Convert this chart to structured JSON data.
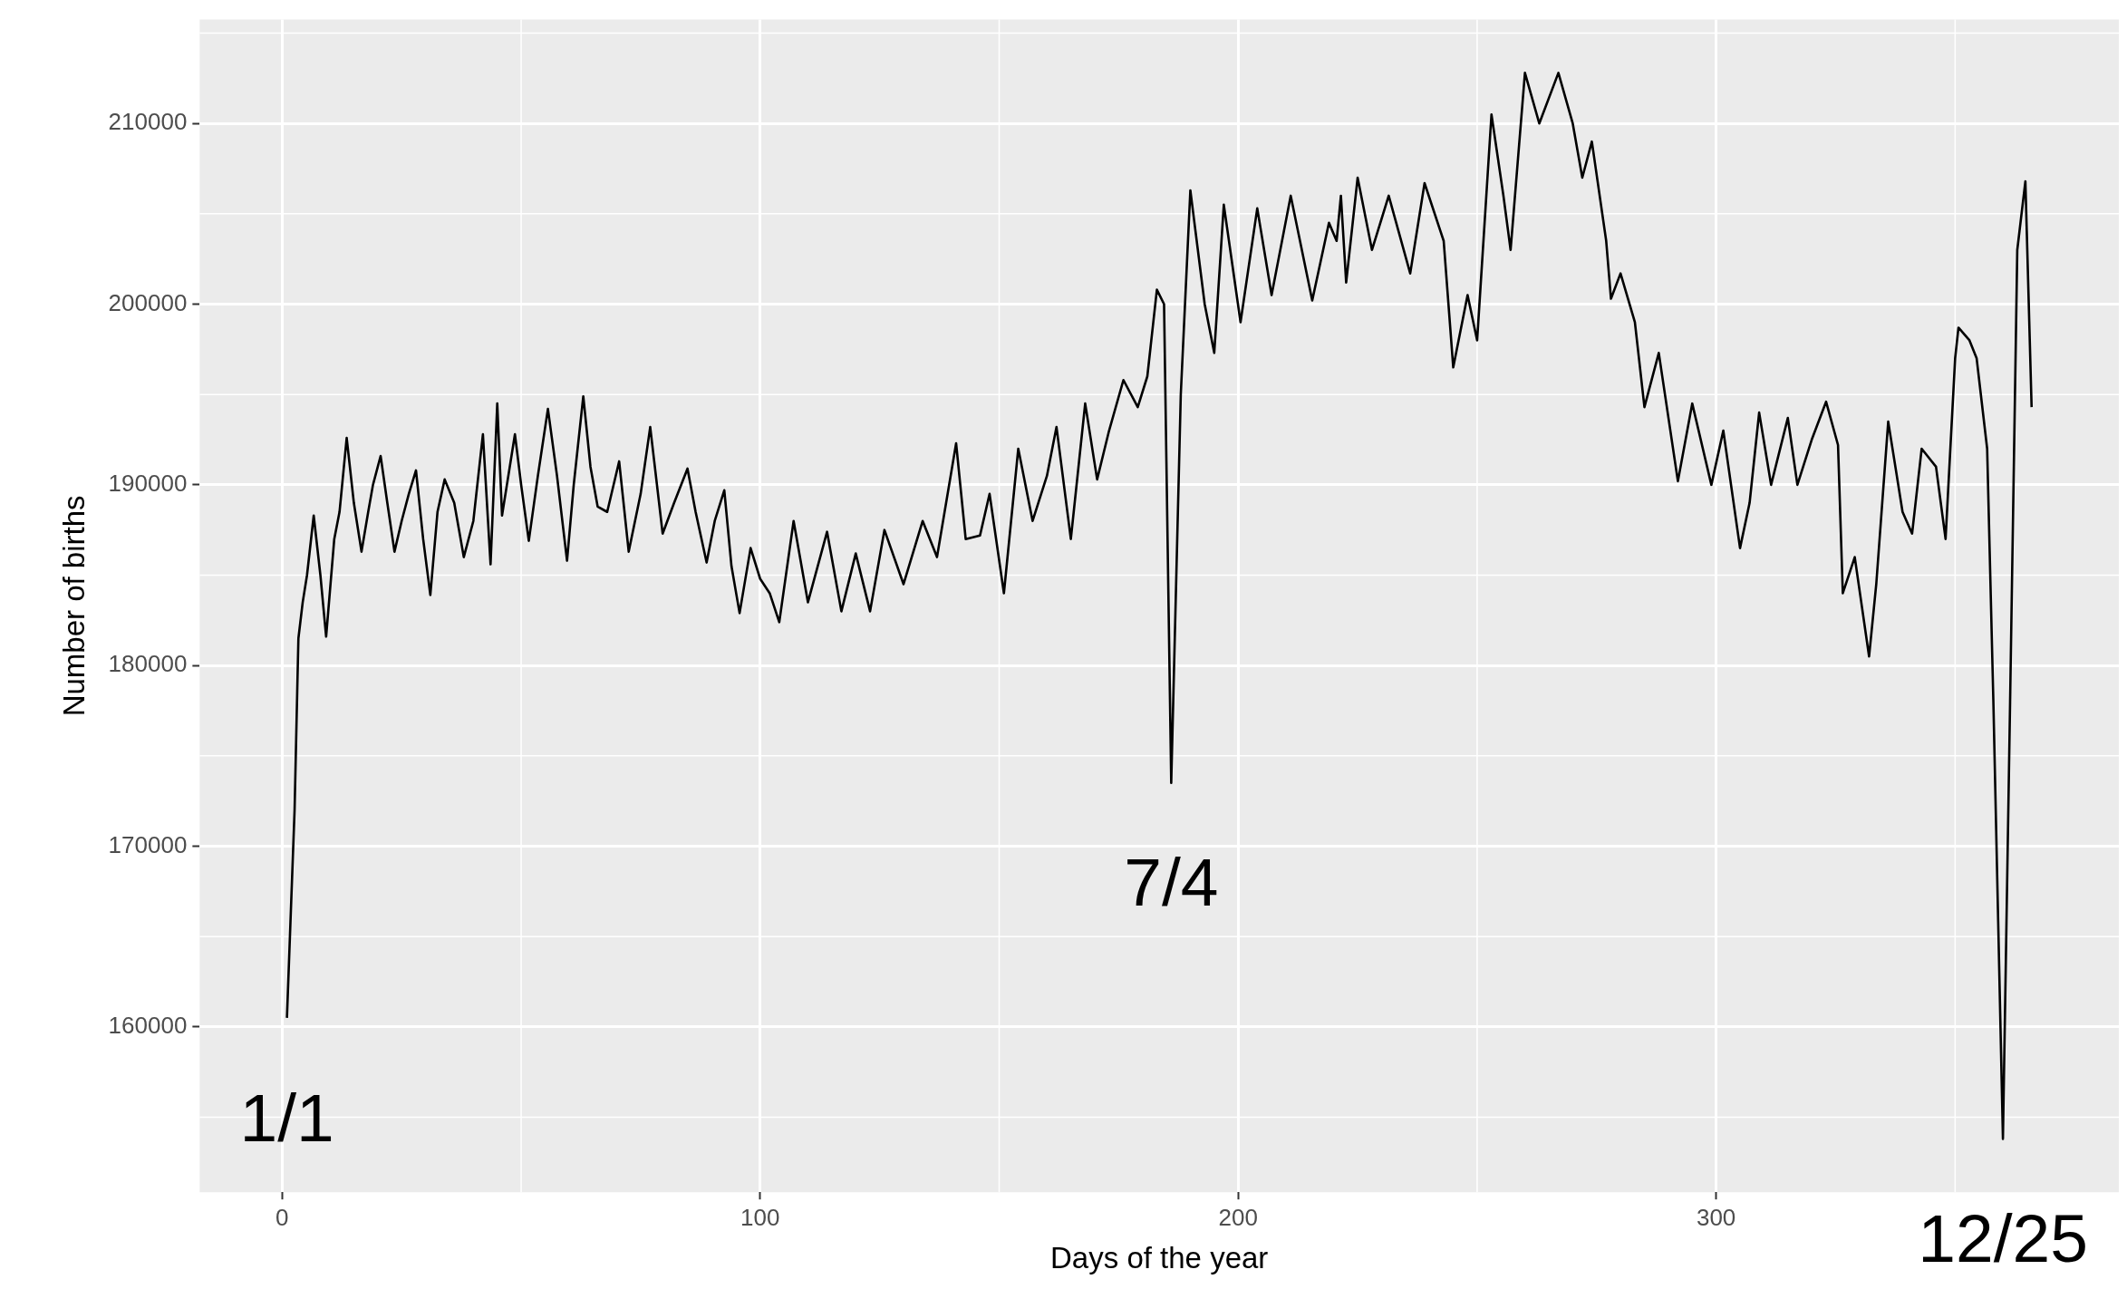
{
  "chart_data": {
    "type": "line",
    "xlabel": "Days of the year",
    "ylabel": "Number of births",
    "x": [
      1,
      2.6,
      3.4,
      4.3,
      5.2,
      6.6,
      8,
      9.2,
      10.9,
      12,
      13.5,
      15,
      16.6,
      18,
      19,
      20.6,
      22,
      23.5,
      25,
      26.5,
      28,
      29.5,
      31,
      32.5,
      34,
      36,
      38,
      40,
      42,
      43.6,
      45,
      46,
      48.7,
      50,
      51.6,
      53.5,
      55.6,
      57.5,
      59.6,
      61,
      63,
      64.5,
      66,
      68,
      70.5,
      72.5,
      75,
      77,
      79.6,
      82,
      84.8,
      86.5,
      88.8,
      90.5,
      92.5,
      94,
      95.7,
      98,
      100,
      102,
      104,
      107,
      110,
      114,
      117,
      120,
      123,
      126,
      130,
      134,
      137,
      141,
      143,
      146,
      148,
      151,
      154,
      157,
      160,
      162,
      165,
      168,
      170.5,
      173,
      176,
      179,
      181,
      183,
      184.5,
      186,
      188,
      190,
      193,
      195,
      197,
      200.5,
      204,
      207,
      211,
      215.5,
      219,
      220.6,
      221.5,
      222.6,
      225,
      228,
      231.5,
      236,
      239,
      243,
      245,
      248,
      250,
      253,
      255.5,
      257,
      260,
      263,
      267,
      270,
      272,
      274,
      277,
      278,
      280,
      283,
      285,
      288,
      292,
      295,
      299,
      301.5,
      305,
      307,
      309,
      311.5,
      315,
      317,
      320,
      323,
      325.5,
      326.5,
      329,
      332,
      333.5,
      336,
      339,
      341,
      343,
      346,
      348,
      350,
      350.7,
      353,
      354.5,
      356.7,
      358,
      360,
      361.5,
      363,
      364.7,
      366
    ],
    "series": [
      {
        "color": "#000000",
        "values": [
          160500,
          172000,
          181500,
          183500,
          185000,
          188300,
          185000,
          181600,
          187000,
          188500,
          192600,
          189000,
          186300,
          188500,
          190000,
          191600,
          189000,
          186300,
          188000,
          189500,
          190800,
          187000,
          183900,
          188500,
          190300,
          189000,
          186000,
          188000,
          192800,
          185600,
          194500,
          188300,
          192800,
          190000,
          186900,
          190500,
          194200,
          190500,
          185800,
          190000,
          194900,
          191000,
          188800,
          188500,
          191300,
          186300,
          189500,
          193200,
          187300,
          189000,
          190900,
          188500,
          185700,
          188000,
          189700,
          185500,
          182900,
          186500,
          184800,
          184000,
          182400,
          188000,
          183500,
          187400,
          183000,
          186200,
          183000,
          187500,
          184500,
          188000,
          186000,
          192300,
          187000,
          187200,
          189500,
          184000,
          192000,
          188000,
          190500,
          193200,
          187000,
          194500,
          190300,
          193000,
          195800,
          194300,
          196000,
          200800,
          200000,
          173500,
          195000,
          206300,
          200000,
          197300,
          205500,
          199000,
          205300,
          200500,
          206000,
          200200,
          204500,
          203500,
          206000,
          201200,
          207000,
          203000,
          206000,
          201700,
          206700,
          203500,
          196500,
          200500,
          198000,
          210500,
          206000,
          203000,
          212800,
          210000,
          212800,
          210000,
          207000,
          209000,
          203500,
          200300,
          201700,
          199000,
          194300,
          197300,
          190200,
          194500,
          190000,
          193000,
          186500,
          189000,
          194000,
          190000,
          193700,
          190000,
          192500,
          194600,
          192200,
          184000,
          186000,
          180500,
          184500,
          193500,
          188500,
          187300,
          192000,
          191000,
          187000,
          197000,
          198700,
          198000,
          197000,
          192000,
          178000,
          153800,
          178000,
          203000,
          206800,
          194300
        ]
      }
    ],
    "xlim": [
      -17.25,
      384.25
    ],
    "ylim": [
      150850,
      215750
    ],
    "xticks": [
      0,
      100,
      200,
      300
    ],
    "yticks": [
      160000,
      170000,
      180000,
      190000,
      200000,
      210000
    ],
    "grid": true,
    "legend": false,
    "marker": "none",
    "line_style": "solid",
    "annotations": [
      {
        "text": "1/1",
        "x": 1,
        "y": 160500
      },
      {
        "text": "7/4",
        "x": 186,
        "y": 173500
      },
      {
        "text": "12/25",
        "x": 360,
        "y": 153800
      }
    ]
  }
}
